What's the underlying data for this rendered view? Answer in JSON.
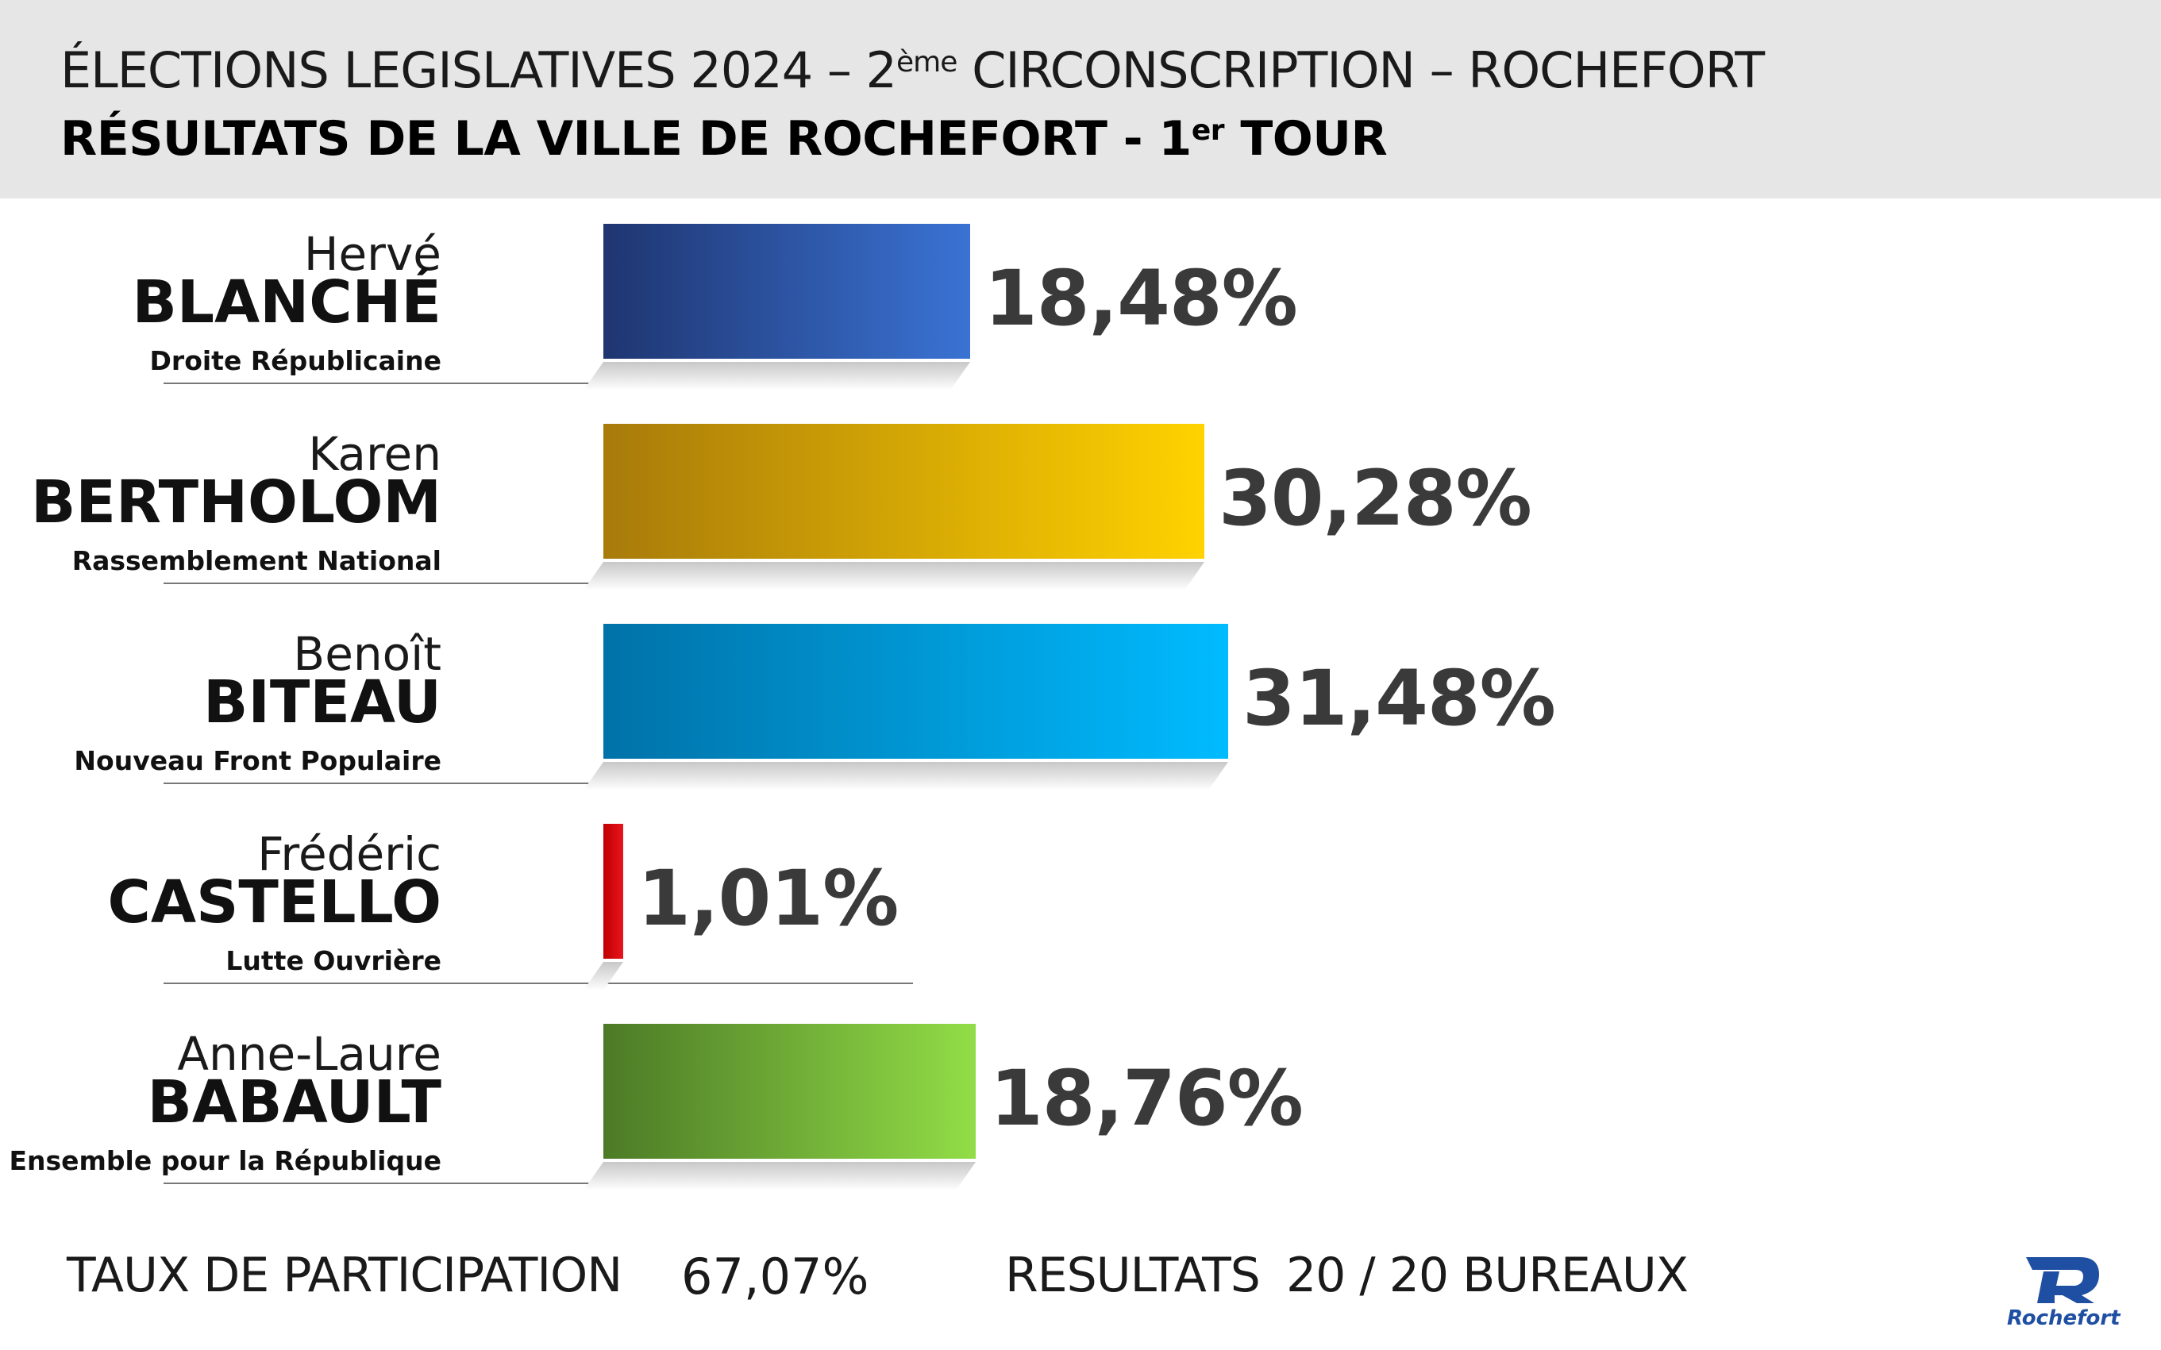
{
  "header": {
    "line1_pre": "ÉLECTIONS LEGISLATIVES 2024 – 2",
    "line1_sup": "ème",
    "line1_post": " CIRCONSCRIPTION – ROCHEFORT",
    "line2_pre": "RÉSULTATS DE LA VILLE DE ROCHEFORT - 1",
    "line2_sup": "er",
    "line2_post": " TOUR"
  },
  "chart_data": {
    "type": "bar",
    "orientation": "horizontal",
    "title": "RÉSULTATS DE LA VILLE DE ROCHEFORT - 1er TOUR",
    "xlim": [
      0,
      35
    ],
    "categories": [
      {
        "first_name": "Hervé",
        "last_name": "BLANCHÉ",
        "party": "Droite Républicaine"
      },
      {
        "first_name": "Karen",
        "last_name": "BERTHOLOM",
        "party": "Rassemblement National"
      },
      {
        "first_name": "Benoît",
        "last_name": "BITEAU",
        "party": "Nouveau Front Populaire"
      },
      {
        "first_name": "Frédéric",
        "last_name": "CASTELLO",
        "party": "Lutte Ouvrière"
      },
      {
        "first_name": "Anne-Laure",
        "last_name": "BABAULT",
        "party": "Ensemble pour la République"
      }
    ],
    "values": [
      18.48,
      30.28,
      31.48,
      1.01,
      18.76
    ],
    "value_labels": [
      "18,48%",
      "30,28%",
      "31,48%",
      "1,01%",
      "18,76%"
    ],
    "colors": [
      [
        "#1f3570",
        "#3a73d4"
      ],
      [
        "#a87a0a",
        "#ffd200"
      ],
      [
        "#0072a8",
        "#00bbff"
      ],
      [
        "#c00000",
        "#e8141c"
      ],
      [
        "#4c7a26",
        "#92dd47"
      ]
    ]
  },
  "footer": {
    "turnout_label": "TAUX DE PARTICIPATION",
    "turnout_value": "67,07%",
    "results_label": "RESULTATS",
    "results_value": "20 / 20 BUREAUX"
  },
  "logo": {
    "text": "Rochefort",
    "icon": "rochefort-logo-icon",
    "color": "#1f4fa3"
  }
}
